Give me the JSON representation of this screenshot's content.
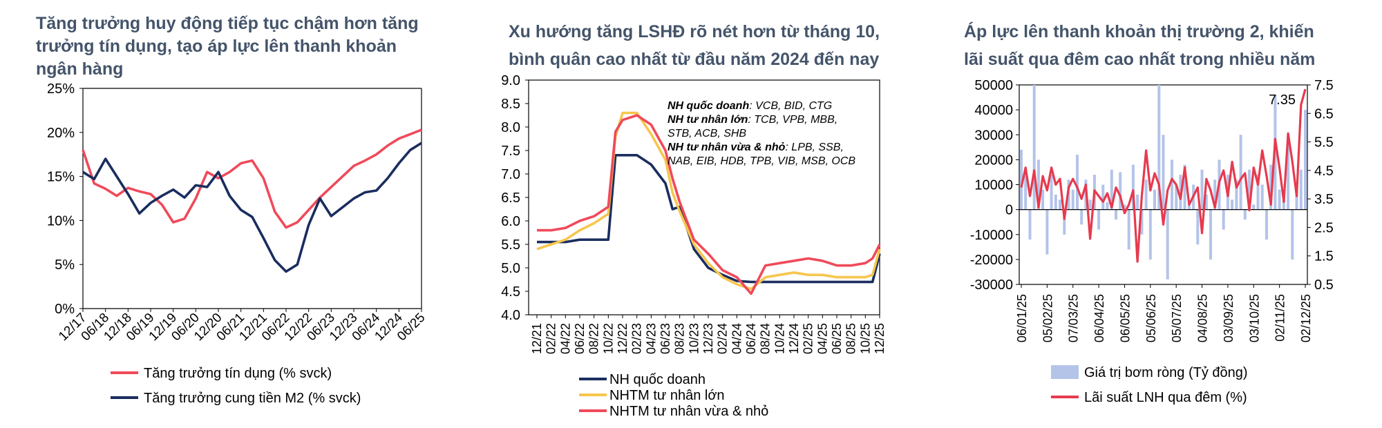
{
  "chart_data": [
    {
      "type": "line",
      "title": "Tăng trưởng huy động tiếp tục chậm hơn tăng trưởng tín dụng, tạo áp lực lên thanh khoản ngân hàng",
      "title_lines": [
        "Tăng trưởng huy động tiếp tục chậm hơn tăng",
        "trưởng tín dụng, tạo áp lực lên thanh khoản",
        "ngân hàng"
      ],
      "y_ticks": [
        "25%",
        "20%",
        "15%",
        "10%",
        "5%",
        "0%"
      ],
      "x_ticks": [
        "12/17",
        "06/18",
        "12/18",
        "06/19",
        "12/19",
        "06/20",
        "12/20",
        "06/21",
        "12/21",
        "06/22",
        "12/22",
        "06/23",
        "12/23",
        "06/24",
        "12/24",
        "06/25"
      ],
      "ylim": [
        0,
        25
      ],
      "grid": false,
      "legend_position": "bottom",
      "x_months": [
        0,
        3,
        6,
        9,
        12,
        15,
        18,
        21,
        24,
        27,
        30,
        33,
        36,
        39,
        42,
        45,
        48,
        51,
        54,
        57,
        60,
        63,
        66,
        69,
        72,
        75,
        78,
        81,
        84,
        87,
        90
      ],
      "series": [
        {
          "name": "Tăng trưởng tín dụng (% svck)",
          "color": "#ef4a5a",
          "values": [
            18.0,
            14.2,
            13.6,
            12.8,
            13.7,
            13.3,
            13.0,
            11.8,
            9.8,
            10.2,
            12.5,
            15.5,
            14.8,
            15.5,
            16.5,
            16.8,
            14.8,
            11.0,
            9.2,
            9.8,
            11.2,
            12.6,
            13.8,
            15.0,
            16.2,
            16.8,
            17.5,
            18.5,
            19.3,
            19.8,
            20.3
          ]
        },
        {
          "name": "Tăng trưởng cung tiền M2 (% svck)",
          "color": "#1a2d5e",
          "values": [
            15.5,
            14.7,
            17.0,
            15.0,
            13.0,
            10.8,
            12.0,
            12.8,
            13.5,
            12.6,
            14.0,
            13.8,
            15.5,
            12.8,
            11.2,
            10.4,
            8.0,
            5.5,
            4.2,
            5.0,
            9.5,
            12.5,
            10.5,
            11.5,
            12.5,
            13.2,
            13.4,
            14.8,
            16.5,
            18.0,
            18.8
          ]
        }
      ]
    },
    {
      "type": "line",
      "title": "Xu hướng tăng LSHĐ rõ nét hơn từ tháng 10, bình quân cao nhất từ đầu năm 2024 đến nay",
      "title_lines": [
        "Xu hướng tăng LSHĐ rõ nét hơn từ tháng 10,",
        "bình quân cao nhất từ đầu năm 2024 đến nay"
      ],
      "y_ticks": [
        "9.0",
        "8.5",
        "8.0",
        "7.5",
        "7.0",
        "6.5",
        "6.0",
        "5.5",
        "5.0",
        "4.5",
        "4.0"
      ],
      "x_ticks": [
        "12/21",
        "02/22",
        "04/22",
        "06/22",
        "08/22",
        "10/22",
        "12/22",
        "02/23",
        "04/23",
        "06/23",
        "08/23",
        "10/23",
        "12/23",
        "02/24",
        "04/24",
        "06/24",
        "08/24",
        "10/24",
        "12/24",
        "02/25",
        "04/25",
        "06/25",
        "08/25",
        "10/25",
        "12/25"
      ],
      "ylim": [
        4.0,
        9.0
      ],
      "grid": false,
      "legend_position": "bottom",
      "x_months": [
        0,
        2,
        4,
        6,
        8,
        10,
        11,
        12,
        14,
        16,
        18,
        19,
        20,
        22,
        24,
        26,
        28,
        30,
        32,
        34,
        36,
        38,
        40,
        42,
        44,
        46,
        47,
        48
      ],
      "series": [
        {
          "name": "NH quốc doanh",
          "color": "#1a2d5e",
          "values": [
            5.55,
            5.55,
            5.55,
            5.6,
            5.6,
            5.6,
            7.4,
            7.4,
            7.4,
            7.2,
            6.8,
            6.25,
            6.3,
            5.4,
            5.0,
            4.85,
            4.72,
            4.7,
            4.7,
            4.7,
            4.7,
            4.7,
            4.7,
            4.7,
            4.7,
            4.7,
            4.7,
            5.3
          ]
        },
        {
          "name": "NHTM tư nhân lớn",
          "color": "#f6c64d",
          "values": [
            5.4,
            5.5,
            5.6,
            5.8,
            5.95,
            6.15,
            7.8,
            8.3,
            8.3,
            7.85,
            7.3,
            6.6,
            6.2,
            5.5,
            5.1,
            4.8,
            4.65,
            4.55,
            4.8,
            4.85,
            4.9,
            4.85,
            4.85,
            4.8,
            4.8,
            4.8,
            4.85,
            5.4
          ]
        },
        {
          "name": "NHTM tư nhân vừa & nhỏ",
          "color": "#ef4a5a",
          "values": [
            5.8,
            5.8,
            5.85,
            6.0,
            6.1,
            6.3,
            7.9,
            8.15,
            8.25,
            8.05,
            7.5,
            6.9,
            6.4,
            5.6,
            5.3,
            4.95,
            4.8,
            4.45,
            5.05,
            5.1,
            5.15,
            5.2,
            5.15,
            5.05,
            5.05,
            5.1,
            5.2,
            5.5
          ]
        }
      ],
      "annotations": [
        {
          "bold": "NH quốc doanh",
          "rest": ": VCB, BID, CTG"
        },
        {
          "bold": "NH tư nhân lớn",
          "rest": ": TCB, VPB, MBB,"
        },
        {
          "bold": "",
          "rest": "STB, ACB, SHB"
        },
        {
          "bold": "NH tư nhân vừa & nhỏ",
          "rest": ": LPB, SSB,"
        },
        {
          "bold": "",
          "rest": "NAB, EIB, HDB, TPB, VIB, MSB, OCB"
        }
      ]
    },
    {
      "type": "bar+line",
      "title": "Áp lực lên thanh khoản thị trường 2, khiến lãi suất qua đêm cao nhất trong nhiều năm",
      "title_lines": [
        "Áp lực lên thanh khoản thị trường 2, khiến",
        "lãi suất qua đêm cao nhất trong nhiều năm"
      ],
      "y_ticks_left": [
        "50000",
        "40000",
        "30000",
        "20000",
        "10000",
        "0",
        "-10000",
        "-20000",
        "-30000"
      ],
      "y_ticks_right": [
        "7.5",
        "6.5",
        "5.5",
        "4.5",
        "3.5",
        "2.5",
        "1.5",
        "0.5"
      ],
      "x_ticks": [
        "06/01/25",
        "05/02/25",
        "07/03/25",
        "06/04/25",
        "06/05/25",
        "05/06/25",
        "05/07/25",
        "04/08/25",
        "03/09/25",
        "03/10/25",
        "02/11/25",
        "02/12/25"
      ],
      "ylim_left": [
        -30000,
        50000
      ],
      "ylim_right": [
        0.5,
        7.5
      ],
      "grid": false,
      "legend_position": "bottom",
      "value_label": "7.35",
      "x_days": [
        0,
        5,
        10,
        15,
        20,
        25,
        30,
        35,
        40,
        45,
        50,
        55,
        60,
        65,
        70,
        75,
        80,
        85,
        90,
        95,
        100,
        105,
        110,
        115,
        120,
        125,
        130,
        135,
        140,
        145,
        150,
        155,
        160,
        165,
        170,
        175,
        180,
        185,
        190,
        195,
        200,
        205,
        210,
        215,
        220,
        225,
        230,
        235,
        240,
        245,
        250,
        255,
        260,
        265,
        270,
        275,
        280,
        285,
        290,
        295,
        300,
        305,
        310,
        315,
        320,
        325,
        330
      ],
      "series": [
        {
          "name": "Giá trị bơm ròng (Tỷ đồng)",
          "color": "#b4c3e8",
          "axis": "left",
          "values": [
            24000,
            15000,
            -12000,
            50000,
            20000,
            8000,
            -18000,
            14000,
            6000,
            4000,
            -10000,
            12000,
            8000,
            22000,
            -6000,
            12000,
            4000,
            14000,
            -8000,
            10000,
            3000,
            16000,
            -4000,
            15000,
            2000,
            -16000,
            18000,
            6000,
            -10000,
            12000,
            -20000,
            8000,
            50000,
            30000,
            -28000,
            20000,
            10000,
            14000,
            18000,
            2000,
            10000,
            -14000,
            16000,
            6000,
            -20000,
            12000,
            20000,
            -8000,
            14000,
            4000,
            12000,
            30000,
            -4000,
            16000,
            2000,
            14000,
            10000,
            -12000,
            18000,
            46000,
            8000,
            6000,
            30000,
            -20000,
            10000,
            16000,
            40000
          ]
        },
        {
          "name": "Lãi suất LNH qua đêm (%)",
          "color": "#e63a4e",
          "axis": "right",
          "values": [
            3.9,
            4.6,
            3.6,
            4.5,
            3.2,
            4.3,
            3.8,
            4.6,
            4.0,
            4.2,
            2.8,
            3.9,
            4.2,
            3.9,
            3.5,
            4.0,
            2.1,
            3.8,
            3.6,
            3.4,
            3.7,
            3.2,
            3.9,
            3.6,
            3.0,
            3.3,
            3.8,
            1.3,
            3.6,
            5.2,
            3.8,
            4.4,
            4.0,
            2.6,
            3.8,
            4.2,
            4.0,
            3.5,
            4.6,
            3.3,
            3.6,
            3.9,
            2.3,
            4.2,
            3.8,
            3.2,
            4.1,
            4.5,
            3.6,
            4.8,
            3.9,
            4.2,
            4.4,
            3.1,
            4.6,
            4.0,
            5.2,
            4.3,
            3.3,
            5.6,
            4.6,
            3.4,
            5.8,
            4.8,
            3.6,
            6.8,
            7.35
          ]
        }
      ]
    }
  ]
}
